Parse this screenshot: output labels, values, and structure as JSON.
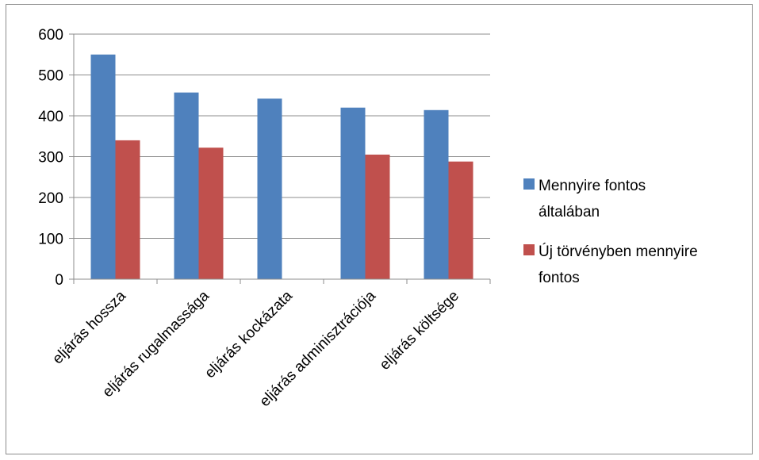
{
  "chart_data": {
    "type": "bar",
    "categories": [
      "eljárás hossza",
      "eljárás rugalmassága",
      "eljárás kockázata",
      "eljárás adminisztrációja",
      "eljárás költsége"
    ],
    "series": [
      {
        "name": "Mennyire fontos általában",
        "values": [
          550,
          457,
          442,
          420,
          414
        ],
        "color": "#4f81bd"
      },
      {
        "name": "Új törvényben mennyire fontos",
        "values": [
          340,
          322,
          0,
          305,
          288
        ],
        "color": "#c0504d"
      }
    ],
    "legend_lines": [
      [
        "Mennyire fontos",
        "általában"
      ],
      [
        "Új törvényben mennyire",
        "fontos"
      ]
    ],
    "y_ticks": [
      "0",
      "100",
      "200",
      "300",
      "400",
      "500",
      "600"
    ],
    "ylim": [
      0,
      600
    ],
    "grid": true,
    "legend_position": "right"
  }
}
